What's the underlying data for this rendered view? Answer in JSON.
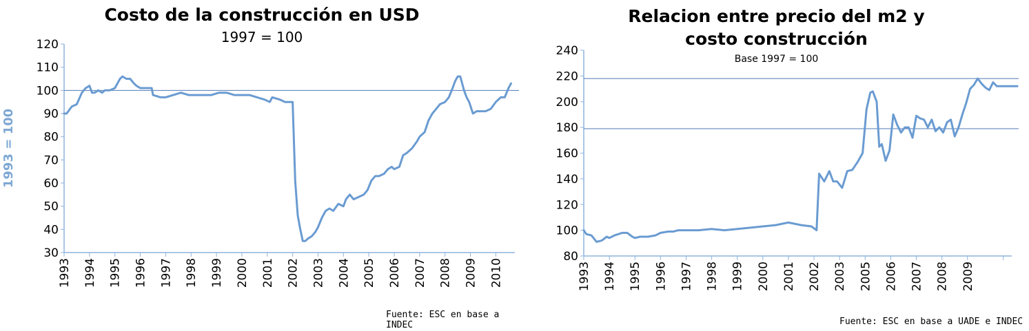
{
  "chart_data": [
    {
      "type": "line",
      "title": "Costo de la construcción en USD",
      "subtitle": "1997 = 100",
      "ylabel": "1993 = 100",
      "xlabel": "",
      "source": "Fuente: ESC en base a INDEC",
      "ylim": [
        30,
        120
      ],
      "yticks": [
        120,
        110,
        100,
        90,
        80,
        70,
        60,
        50,
        40,
        30
      ],
      "xticks": [
        "1993",
        "1994",
        "1995",
        "1996",
        "1997",
        "1998",
        "1999",
        "2000",
        "2001",
        "2002",
        "2003",
        "2004",
        "2005",
        "2006",
        "2007",
        "2008",
        "2009",
        "2010"
      ],
      "xlim": [
        1993,
        2010.75
      ],
      "hlines": [
        100
      ],
      "colors": {
        "line": "#6a9bd1",
        "axis": "#8db3dd",
        "ylabel": "#7ea8d4",
        "hline": "#4f79b5"
      },
      "series": [
        {
          "x": [
            1993.0,
            1993.1,
            1993.3,
            1993.5,
            1993.7,
            1993.85,
            1994.0,
            1994.1,
            1994.2,
            1994.35,
            1994.5,
            1994.6,
            1994.8,
            1995.0,
            1995.2,
            1995.3,
            1995.45,
            1995.6,
            1995.75,
            1995.85,
            1996.0,
            1996.1,
            1996.25,
            1996.45,
            1996.5,
            1996.8,
            1997.0,
            1997.3,
            1997.6,
            1997.9,
            1998.2,
            1998.5,
            1998.8,
            1999.1,
            1999.4,
            1999.7,
            2000.0,
            2000.3,
            2000.6,
            2000.9,
            2001.1,
            2001.2,
            2001.5,
            2001.7,
            2001.9,
            2002.0,
            2002.1,
            2002.2,
            2002.3,
            2002.4,
            2002.5,
            2002.6,
            2002.75,
            2002.9,
            2003.0,
            2003.15,
            2003.3,
            2003.45,
            2003.6,
            2003.8,
            2004.0,
            2004.1,
            2004.25,
            2004.4,
            2004.6,
            2004.8,
            2004.95,
            2005.1,
            2005.25,
            2005.4,
            2005.6,
            2005.75,
            2005.9,
            2006.0,
            2006.2,
            2006.35,
            2006.5,
            2006.7,
            2006.9,
            2007.0,
            2007.2,
            2007.35,
            2007.5,
            2007.65,
            2007.8,
            2008.0,
            2008.15,
            2008.3,
            2008.4,
            2008.5,
            2008.6,
            2008.75,
            2008.85,
            2008.95,
            2009.1,
            2009.25,
            2009.4,
            2009.6,
            2009.8,
            2010.0,
            2010.2,
            2010.35,
            2010.5,
            2010.6
          ],
          "y": [
            90,
            90,
            93,
            94,
            99,
            101,
            102,
            99,
            99,
            100,
            99,
            100,
            100,
            101,
            105,
            106,
            105,
            105,
            103,
            102,
            101,
            101,
            101,
            101,
            98,
            97,
            97,
            98,
            99,
            98,
            98,
            98,
            98,
            99,
            99,
            98,
            98,
            98,
            97,
            96,
            95,
            97,
            96,
            95,
            95,
            95,
            61,
            46,
            40,
            35,
            35,
            36,
            37,
            39,
            41,
            45,
            48,
            49,
            48,
            51,
            50,
            53,
            55,
            53,
            54,
            55,
            57,
            61,
            63,
            63,
            64,
            66,
            67,
            66,
            67,
            72,
            73,
            75,
            78,
            80,
            82,
            87,
            90,
            92,
            94,
            95,
            97,
            101,
            104,
            106,
            106,
            100,
            97,
            95,
            90,
            91,
            91,
            91,
            92,
            95,
            97,
            97,
            101,
            103
          ]
        }
      ]
    },
    {
      "type": "line",
      "title": "Relacion entre precio del m2 y costo construcción",
      "title_lines": [
        "Relacion entre precio del m2 y",
        "costo construcción"
      ],
      "subtitle": "Base 1997 = 100",
      "ylabel": "",
      "xlabel": "",
      "source": "Fuente: ESC en base a UADE e INDEC",
      "ylim": [
        80,
        240
      ],
      "yticks": [
        240,
        220,
        200,
        180,
        160,
        140,
        120,
        100,
        80
      ],
      "xticks": [
        "1993",
        "1994",
        "1995",
        "1996",
        "1997",
        "1998",
        "1999",
        "2000",
        "2001",
        "2002",
        "2003",
        "2005",
        "2006",
        "2007",
        "2008",
        "2009"
      ],
      "xlim": [
        0,
        17
      ],
      "hlines": [
        218,
        179
      ],
      "colors": {
        "line": "#6a9bd1",
        "axis": "#8db3dd",
        "hline": "#4f79b5"
      },
      "series": [
        {
          "x": [
            0.0,
            0.1,
            0.3,
            0.5,
            0.7,
            0.9,
            1.0,
            1.2,
            1.5,
            1.7,
            1.9,
            2.0,
            2.2,
            2.5,
            2.8,
            3.0,
            3.3,
            3.5,
            3.7,
            4.0,
            4.5,
            5.0,
            5.5,
            6.0,
            6.5,
            7.0,
            7.5,
            8.0,
            8.5,
            8.9,
            9.1,
            9.2,
            9.4,
            9.6,
            9.75,
            9.9,
            10.1,
            10.3,
            10.5,
            10.7,
            10.9,
            11.05,
            11.2,
            11.3,
            11.45,
            11.55,
            11.65,
            11.8,
            11.95,
            12.1,
            12.25,
            12.4,
            12.55,
            12.7,
            12.85,
            13.0,
            13.15,
            13.3,
            13.45,
            13.6,
            13.75,
            13.9,
            14.05,
            14.2,
            14.35,
            14.5,
            14.65,
            14.8,
            14.95,
            15.1,
            15.25,
            15.4,
            15.55,
            15.7,
            15.85,
            16.0,
            16.15,
            16.35,
            16.5,
            16.65,
            16.8,
            16.95
          ],
          "y": [
            100,
            97,
            96,
            91,
            92,
            95,
            94,
            96,
            98,
            98,
            95,
            94,
            95,
            95,
            96,
            98,
            99,
            99,
            100,
            100,
            100,
            101,
            100,
            101,
            102,
            103,
            104,
            106,
            104,
            103,
            100,
            144,
            138,
            146,
            138,
            138,
            133,
            146,
            147,
            153,
            160,
            194,
            207,
            208,
            200,
            165,
            167,
            154,
            162,
            190,
            182,
            176,
            180,
            180,
            172,
            189,
            187,
            186,
            180,
            186,
            177,
            180,
            176,
            184,
            186,
            173,
            180,
            190,
            199,
            210,
            213,
            218,
            214,
            211,
            209,
            215,
            212,
            212,
            212,
            212,
            212,
            212
          ]
        }
      ]
    }
  ]
}
